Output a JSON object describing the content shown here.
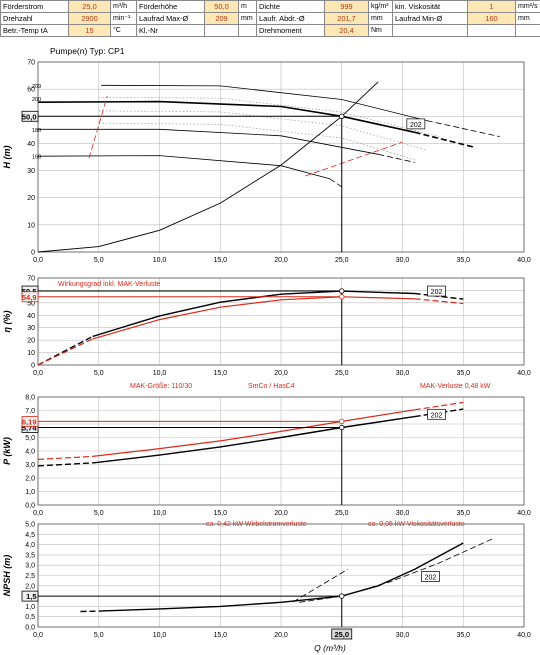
{
  "header": {
    "rows": [
      [
        {
          "label": "Förderstrom",
          "value": "25,0",
          "unit": "m³/h"
        },
        {
          "label": "Förderhöhe",
          "value": "50,0",
          "unit": "m"
        },
        {
          "label": "Dichte",
          "value": "999",
          "unit": "kg/m³"
        },
        {
          "label": "kin. Viskosität",
          "value": "1",
          "unit": "mm²/s"
        }
      ],
      [
        {
          "label": "Drehzahl",
          "value": "2900",
          "unit": "min⁻¹"
        },
        {
          "label": "Laufrad Max-Ø",
          "value": "209",
          "unit": "mm"
        },
        {
          "label": "Laufr. Abdr.-Ø",
          "value": "201,7",
          "unit": "mm"
        },
        {
          "label": "Laufrad Min-Ø",
          "value": "160",
          "unit": "mm"
        }
      ],
      [
        {
          "label": "Betr.-Temp tA",
          "value": "15",
          "unit": "°C"
        },
        {
          "label": "Kl.-Nr",
          "value": "",
          "unit": ""
        },
        {
          "label": "Drehmoment",
          "value": "20,4",
          "unit": "Nm"
        },
        {
          "label": "",
          "value": "",
          "unit": ""
        }
      ]
    ]
  },
  "colors": {
    "black": "#000000",
    "red": "#d92b1c",
    "grid": "#bdbdbd",
    "header_value_bg": "#fde7b4",
    "op_box": "#f0f0f0"
  },
  "chart_data": [
    {
      "id": "head",
      "type": "line",
      "title": "Pumpe(n) Typ:   CP1",
      "ylabel": "H (m)",
      "xlim": [
        0,
        40
      ],
      "ylim": [
        0,
        70
      ],
      "xticks": [
        "0,0",
        "5,0",
        "10,0",
        "15,0",
        "20,0",
        "25,0",
        "30,0",
        "35,0",
        "40,0"
      ],
      "yticks": [
        "0",
        "10",
        "20",
        "30",
        "40",
        "50",
        "60",
        "70"
      ],
      "operating_point": {
        "x": 25,
        "y": 50,
        "label": "50,0"
      },
      "curve_label": "202",
      "impeller_labels": [
        "209",
        "200",
        "180",
        "160"
      ],
      "series": [
        {
          "color": "black",
          "width": 1.6,
          "solid": [
            [
              0,
              55.2
            ],
            [
              10,
              55.4
            ],
            [
              20,
              53.6
            ],
            [
              25,
              50.0
            ],
            [
              31,
              44.1
            ]
          ],
          "dashed": [
            [
              31,
              44.1
            ],
            [
              36,
              38.5
            ]
          ]
        },
        {
          "color": "black",
          "width": 0.8,
          "solid": [
            [
              5.2,
              61.4
            ],
            [
              15,
              61.2
            ],
            [
              25,
              56.2
            ],
            [
              32,
              48.4
            ]
          ],
          "dashed": [
            [
              32,
              48.4
            ],
            [
              38,
              42.5
            ]
          ]
        },
        {
          "color": "black",
          "width": 0.8,
          "solid": [
            [
              0,
              45.2
            ],
            [
              10,
              45.2
            ],
            [
              20,
              42.8
            ],
            [
              28,
              36
            ]
          ],
          "dashed": [
            [
              28,
              36
            ],
            [
              31,
              33
            ]
          ]
        },
        {
          "color": "black",
          "width": 0.8,
          "solid": [
            [
              0,
              35.3
            ],
            [
              10,
              35.5
            ],
            [
              20,
              31.8
            ],
            [
              24,
              27
            ]
          ],
          "dashed": [
            [
              24,
              27
            ],
            [
              25,
              24
            ]
          ]
        },
        {
          "color": "black",
          "width": 0.9,
          "solid": [
            [
              0,
              0
            ],
            [
              5,
              2
            ],
            [
              10,
              8
            ],
            [
              15,
              18
            ],
            [
              20,
              32
            ],
            [
              25,
              50
            ],
            [
              28,
              62.7
            ]
          ],
          "dashed": []
        },
        {
          "color": "#9a9a9a",
          "width": 0.7,
          "solid": [
            [
              5,
              57
            ],
            [
              15,
              56.7
            ],
            [
              25,
              51.5
            ],
            [
              33,
              42.5
            ]
          ],
          "dotted": true
        },
        {
          "color": "#9a9a9a",
          "width": 0.7,
          "solid": [
            [
              5,
              52
            ],
            [
              15,
              51.6
            ],
            [
              25,
              46.5
            ],
            [
              32,
              37.5
            ]
          ],
          "dotted": true
        },
        {
          "color": "#9a9a9a",
          "width": 0.7,
          "solid": [
            [
              5,
              47.5
            ],
            [
              15,
              47
            ],
            [
              25,
              42
            ],
            [
              31,
              34
            ]
          ],
          "dotted": true
        },
        {
          "color": "red",
          "width": 0.8,
          "dashed": [
            [
              4.2,
              34.5
            ],
            [
              5.7,
              57.5
            ]
          ]
        },
        {
          "color": "red",
          "width": 0.8,
          "dashed": [
            [
              22,
              28
            ],
            [
              30,
              40.5
            ]
          ]
        }
      ]
    },
    {
      "id": "efficiency",
      "type": "line",
      "ylabel": "η (%)",
      "xlim": [
        0,
        40
      ],
      "ylim": [
        0,
        70
      ],
      "xticks": [
        "0,0",
        "5,0",
        "10,0",
        "15,0",
        "20,0",
        "25,0",
        "30,0",
        "35,0",
        "40,0"
      ],
      "yticks": [
        "0",
        "10",
        "20",
        "30",
        "40",
        "50",
        "60",
        "70"
      ],
      "operating_point": {
        "x": 25,
        "y": 59.5,
        "label": "59,5",
        "red_y": 54.9,
        "red_label": "54,9"
      },
      "curve_label": "202",
      "annotation": "Wirkungsgrad inkl. MAK-Verluste",
      "series": [
        {
          "color": "black",
          "width": 1.4,
          "dashed": [
            [
              0,
              0
            ],
            [
              4.5,
              23
            ]
          ],
          "solid": [
            [
              4.5,
              23
            ],
            [
              10,
              39.5
            ],
            [
              15,
              50.5
            ],
            [
              20,
              57
            ],
            [
              25,
              59.5
            ],
            [
              31,
              57.5
            ]
          ],
          "dashed2": [
            [
              31,
              57.5
            ],
            [
              35,
              53
            ]
          ]
        },
        {
          "color": "red",
          "width": 1.2,
          "dashed": [
            [
              0,
              0
            ],
            [
              4.5,
              21
            ]
          ],
          "solid": [
            [
              4.5,
              21
            ],
            [
              10,
              36.5
            ],
            [
              15,
              46.5
            ],
            [
              20,
              52.5
            ],
            [
              25,
              54.9
            ],
            [
              31,
              53.3
            ]
          ],
          "dashed2": [
            [
              31,
              53.3
            ],
            [
              35,
              49.5
            ]
          ]
        }
      ]
    },
    {
      "id": "power",
      "type": "line",
      "ylabel": "P (kW)",
      "xlim": [
        0,
        40
      ],
      "ylim": [
        0,
        8
      ],
      "xticks": [
        "0,0",
        "5,0",
        "10,0",
        "15,0",
        "20,0",
        "25,0",
        "30,0",
        "35,0",
        "40,0"
      ],
      "yticks": [
        "0,0",
        "1,0",
        "2,0",
        "3,0",
        "4,0",
        "5,0",
        "6,0",
        "7,0",
        "8,0"
      ],
      "operating_point": {
        "x": 25,
        "y": 5.74,
        "label": "5,74",
        "red_y": 6.19,
        "red_label": "6,19"
      },
      "curve_label": "202",
      "top_annotations": [
        "MAK-Größe:  110/30",
        "SmCo / HasC4",
        "MAK-Verluste    0,48   kW"
      ],
      "bottom_annotations": [
        "ca.   0,42   kW     Wirbelstromverluste",
        "ca.   0,05   kW   Viskositätsverluste"
      ],
      "series": [
        {
          "color": "black",
          "width": 1.4,
          "dashed": [
            [
              0,
              2.9
            ],
            [
              4.5,
              3.12
            ]
          ],
          "solid": [
            [
              4.5,
              3.12
            ],
            [
              10,
              3.7
            ],
            [
              15,
              4.3
            ],
            [
              20,
              5.0
            ],
            [
              25,
              5.74
            ],
            [
              31,
              6.55
            ]
          ],
          "dashed2": [
            [
              31,
              6.55
            ],
            [
              35,
              7.1
            ]
          ]
        },
        {
          "color": "red",
          "width": 1.2,
          "dashed": [
            [
              0,
              3.38
            ],
            [
              4.5,
              3.6
            ]
          ],
          "solid": [
            [
              4.5,
              3.6
            ],
            [
              10,
              4.18
            ],
            [
              15,
              4.75
            ],
            [
              20,
              5.45
            ],
            [
              25,
              6.19
            ],
            [
              31,
              7.05
            ]
          ],
          "dashed2": [
            [
              31,
              7.05
            ],
            [
              35,
              7.6
            ]
          ]
        }
      ]
    },
    {
      "id": "npsh",
      "type": "line",
      "ylabel": "NPSH (m)",
      "xlabel": "Q (m³/h)",
      "xlim": [
        0,
        40
      ],
      "ylim": [
        0,
        5
      ],
      "xticks": [
        "0,0",
        "5,0",
        "10,0",
        "15,0",
        "20,0",
        "25,0",
        "30,0",
        "35,0",
        "40,0"
      ],
      "yticks": [
        "0,0",
        "0,5",
        "1,0",
        "1,5",
        "2,0",
        "2,5",
        "3,0",
        "3,5",
        "4,0",
        "4,5",
        "5,0"
      ],
      "operating_point": {
        "x": 25,
        "y": 1.5,
        "label": "1,5",
        "x_label": "25,0"
      },
      "curve_label": "202",
      "series": [
        {
          "color": "black",
          "width": 1.4,
          "dashed": [
            [
              3.5,
              0.75
            ],
            [
              5,
              0.77
            ]
          ],
          "solid": [
            [
              5,
              0.77
            ],
            [
              10,
              0.88
            ],
            [
              15,
              1.0
            ],
            [
              20,
              1.2
            ],
            [
              25,
              1.5
            ],
            [
              28,
              2.0
            ],
            [
              31,
              2.8
            ],
            [
              35,
              4.08
            ]
          ],
          "dashed2": []
        },
        {
          "color": "black",
          "width": 0.8,
          "dashed": [
            [
              21.5,
              1.2
            ],
            [
              25,
              1.5
            ],
            [
              29,
              2.2
            ],
            [
              33,
              3.1
            ],
            [
              37.5,
              4.3
            ]
          ]
        },
        {
          "color": "black",
          "width": 0.8,
          "dashed": [
            [
              21,
              1.22
            ],
            [
              25.5,
              2.8
            ]
          ]
        }
      ]
    }
  ]
}
